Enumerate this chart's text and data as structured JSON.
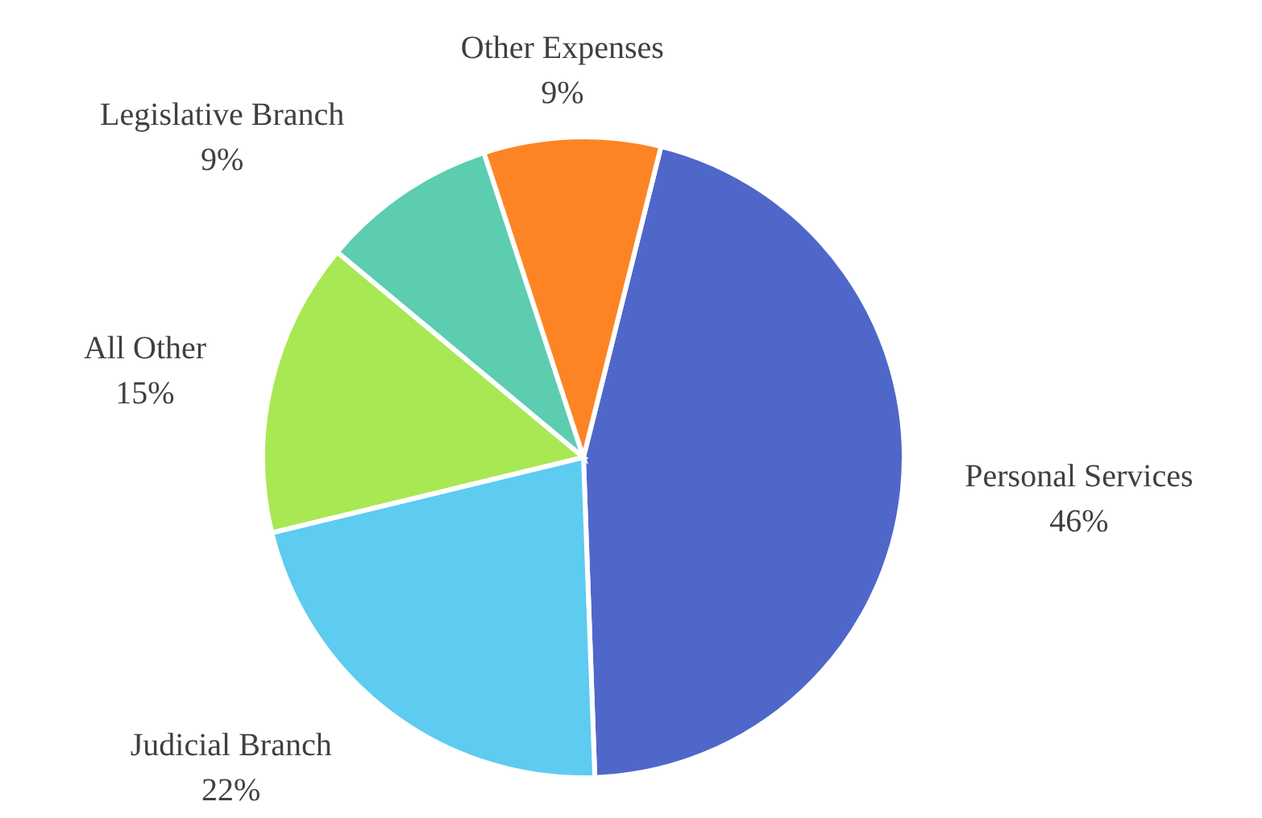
{
  "chart_data": {
    "type": "pie",
    "categories": [
      "Personal Services",
      "Judicial Branch",
      "All Other",
      "Legislative Branch",
      "Other Expenses"
    ],
    "values": [
      46,
      22,
      15,
      9,
      9
    ],
    "colors": [
      "#4f67c9",
      "#5ecbf0",
      "#a8e853",
      "#5ccdb0",
      "#fd8424"
    ],
    "value_labels": [
      "46%",
      "22%",
      "15%",
      "9%",
      "9%"
    ]
  }
}
